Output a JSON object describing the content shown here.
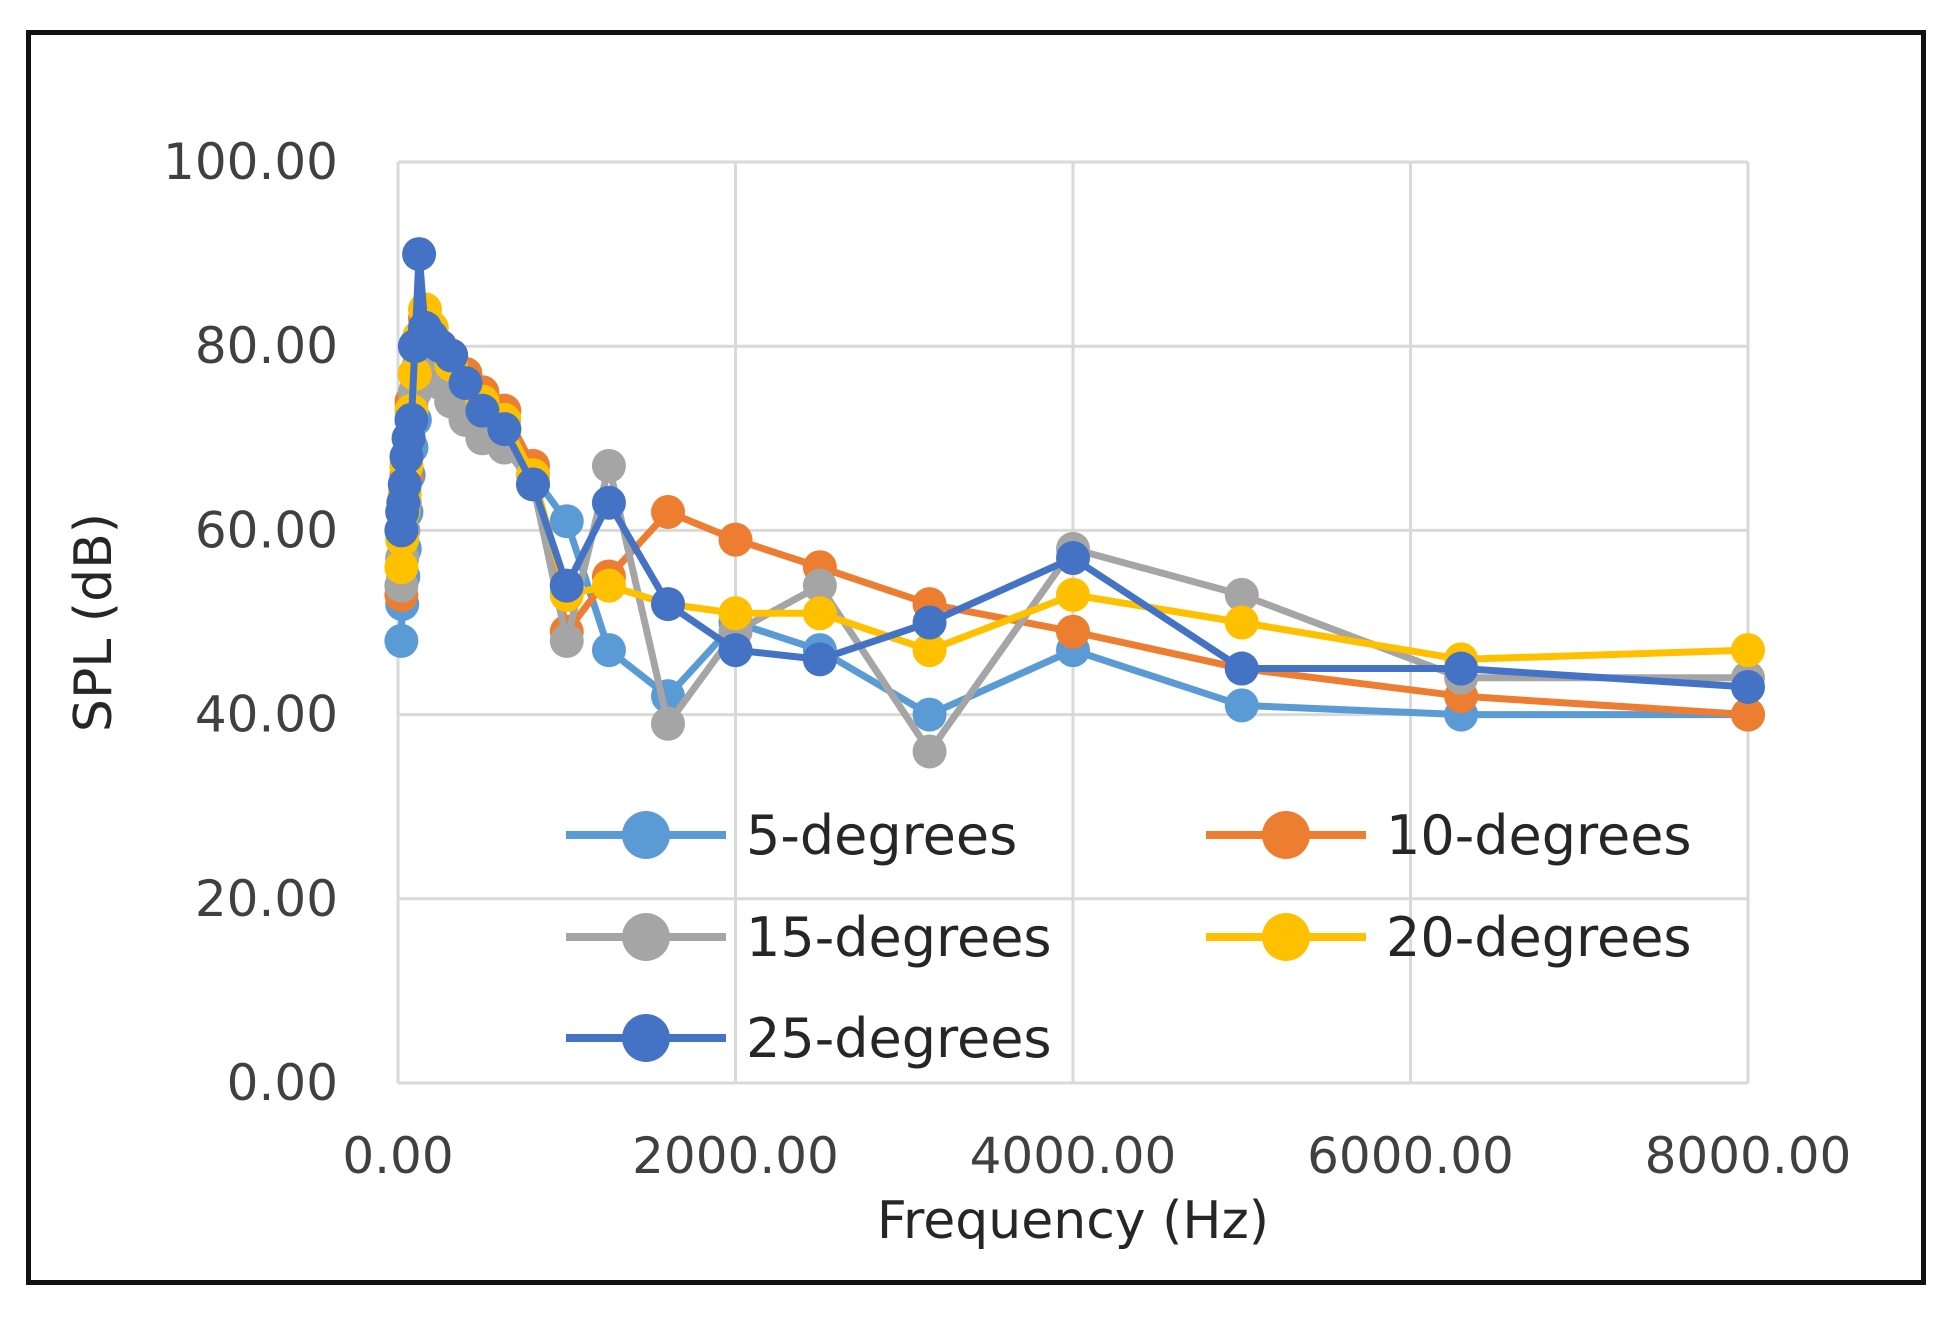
{
  "chart_data": {
    "type": "line",
    "title": "",
    "xlabel": "Frequency (Hz)",
    "ylabel": "SPL (dB)",
    "xlim": [
      0,
      8000
    ],
    "ylim": [
      0,
      100
    ],
    "x_ticks": [
      "0.00",
      "2000.00",
      "4000.00",
      "6000.00",
      "8000.00"
    ],
    "y_ticks": [
      "0.00",
      "20.00",
      "40.00",
      "60.00",
      "80.00",
      "100.00"
    ],
    "grid": true,
    "legend_position": "bottom-right",
    "x": [
      20,
      25,
      31.5,
      40,
      50,
      63,
      80,
      100,
      125,
      160,
      200,
      250,
      315,
      400,
      500,
      630,
      800,
      1000,
      1250,
      1600,
      2000,
      2500,
      3150,
      4000,
      5000,
      6300,
      8000
    ],
    "series": [
      {
        "name": "5-degrees",
        "color": "#5B9BD5",
        "values": [
          48,
          52,
          55,
          58,
          62,
          66,
          69,
          72,
          80,
          82,
          81,
          79,
          77,
          74,
          72,
          71,
          66,
          61,
          47,
          42,
          50,
          47,
          40,
          47,
          41,
          40,
          40
        ]
      },
      {
        "name": "10-degrees",
        "color": "#ED7D31",
        "values": [
          53,
          57,
          60,
          63,
          66,
          70,
          74,
          77,
          80,
          83,
          81,
          80,
          79,
          77,
          75,
          73,
          67,
          49,
          55,
          62,
          59,
          56,
          52,
          49,
          45,
          42,
          40
        ]
      },
      {
        "name": "15-degrees",
        "color": "#A5A5A5",
        "values": [
          54,
          57,
          60,
          63,
          67,
          70,
          72,
          75,
          78,
          79,
          78,
          76,
          74,
          72,
          70,
          69,
          65,
          48,
          67,
          39,
          49,
          54,
          36,
          58,
          53,
          44,
          44
        ]
      },
      {
        "name": "20-degrees",
        "color": "#FFC000",
        "values": [
          56,
          59,
          62,
          64,
          67,
          70,
          73,
          77,
          81,
          84,
          82,
          80,
          78,
          76,
          74,
          72,
          66,
          53,
          54,
          52,
          51,
          51,
          47,
          53,
          50,
          46,
          47
        ]
      },
      {
        "name": "25-degrees",
        "color": "#4472C4",
        "values": [
          60,
          62,
          63,
          65,
          68,
          70,
          72,
          80,
          90,
          82,
          81,
          80,
          79,
          76,
          73,
          71,
          65,
          54,
          63,
          52,
          47,
          46,
          50,
          57,
          45,
          45,
          43
        ]
      }
    ]
  }
}
